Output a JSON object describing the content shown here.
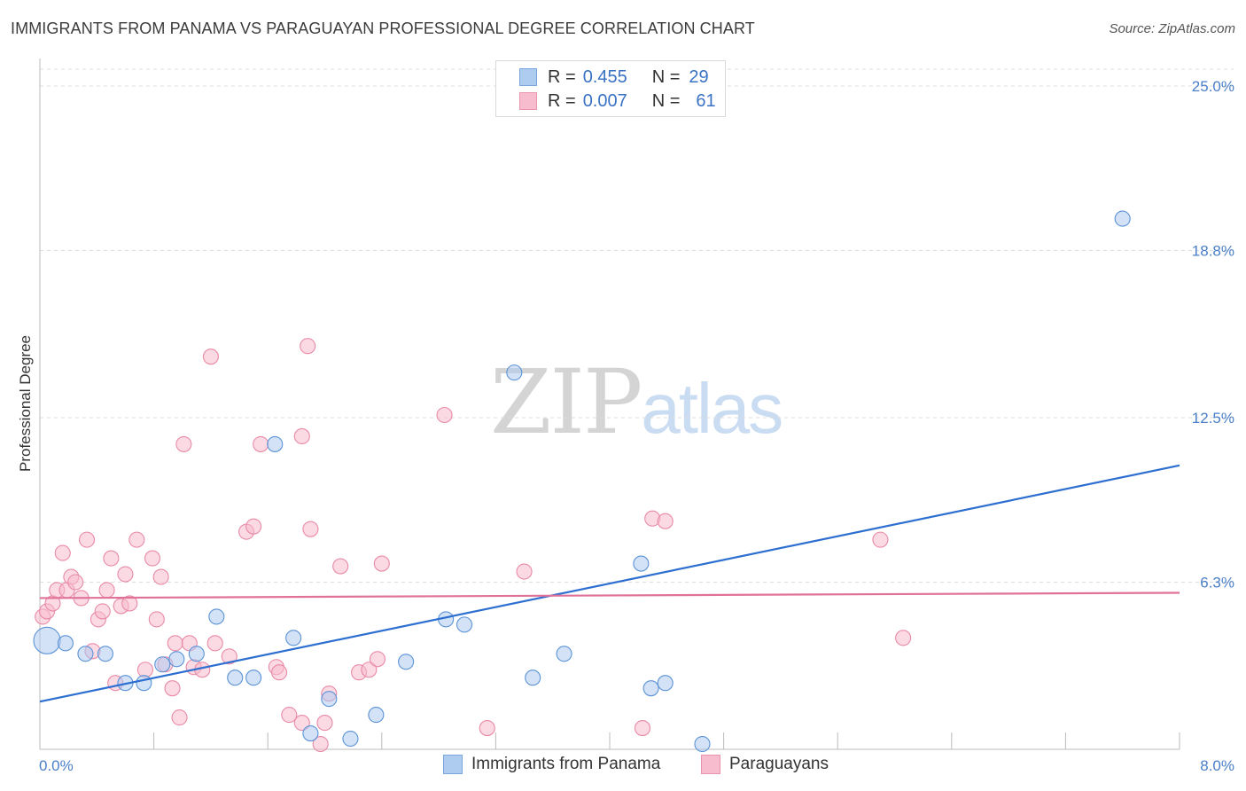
{
  "header": {
    "title": "IMMIGRANTS FROM PANAMA VS PARAGUAYAN PROFESSIONAL DEGREE CORRELATION CHART",
    "source": "Source: ZipAtlas.com"
  },
  "watermark": {
    "zip": "ZIP",
    "atlas": "atlas"
  },
  "legend": {
    "rows": [
      {
        "r_label": "R =",
        "r_value": "0.455",
        "n_label": "N =",
        "n_value": "29",
        "color": "#aecbf0"
      },
      {
        "r_label": "R =",
        "r_value": "0.007",
        "n_label": "N =",
        "n_value": "61",
        "color": "#f7bccd"
      }
    ]
  },
  "bottom_legend": {
    "items": [
      {
        "label": "Immigrants from Panama",
        "color": "#aecbf0"
      },
      {
        "label": "Paraguayans",
        "color": "#f7bccd"
      }
    ]
  },
  "chart_data": {
    "type": "scatter",
    "title": "IMMIGRANTS FROM PANAMA VS PARAGUAYAN PROFESSIONAL DEGREE CORRELATION CHART",
    "xlabel": "",
    "ylabel": "Professional Degree",
    "xlim": [
      0,
      8.0
    ],
    "ylim": [
      0,
      25.0
    ],
    "x_tick_labels": [
      "0.0%",
      "8.0%"
    ],
    "y_tick_labels": [
      "6.3%",
      "12.5%",
      "18.8%",
      "25.0%"
    ],
    "y_ticks": [
      6.3,
      12.5,
      18.8,
      25.0
    ],
    "grid": true,
    "series": [
      {
        "name": "Immigrants from Panama",
        "color": "#5b93d6",
        "fill": "#aecbf0",
        "trend": {
          "x": [
            0,
            8.0
          ],
          "y": [
            1.8,
            10.7
          ],
          "color": "#2d6fd0"
        },
        "points": [
          {
            "x": 0.05,
            "y": 4.1,
            "size": "large"
          },
          {
            "x": 0.18,
            "y": 4.0
          },
          {
            "x": 0.32,
            "y": 3.6
          },
          {
            "x": 0.46,
            "y": 3.6
          },
          {
            "x": 0.6,
            "y": 2.5
          },
          {
            "x": 0.73,
            "y": 2.5
          },
          {
            "x": 0.86,
            "y": 3.2
          },
          {
            "x": 0.96,
            "y": 3.4
          },
          {
            "x": 1.1,
            "y": 3.6
          },
          {
            "x": 1.24,
            "y": 5.0
          },
          {
            "x": 1.37,
            "y": 2.7
          },
          {
            "x": 1.5,
            "y": 2.7
          },
          {
            "x": 1.65,
            "y": 11.5
          },
          {
            "x": 1.78,
            "y": 4.2
          },
          {
            "x": 1.9,
            "y": 0.6
          },
          {
            "x": 2.03,
            "y": 1.9
          },
          {
            "x": 2.18,
            "y": 0.4
          },
          {
            "x": 2.36,
            "y": 1.3
          },
          {
            "x": 2.57,
            "y": 3.3
          },
          {
            "x": 2.85,
            "y": 4.9
          },
          {
            "x": 2.98,
            "y": 4.7
          },
          {
            "x": 3.33,
            "y": 14.2
          },
          {
            "x": 3.46,
            "y": 2.7
          },
          {
            "x": 3.68,
            "y": 3.6
          },
          {
            "x": 4.22,
            "y": 7.0
          },
          {
            "x": 4.29,
            "y": 2.3
          },
          {
            "x": 4.39,
            "y": 2.5
          },
          {
            "x": 4.65,
            "y": 0.2
          },
          {
            "x": 7.6,
            "y": 20.0
          }
        ]
      },
      {
        "name": "Paraguayans",
        "color": "#e98aa6",
        "fill": "#f7bccd",
        "trend": {
          "x": [
            0,
            8.0
          ],
          "y": [
            5.7,
            5.9
          ],
          "color": "#e0729a"
        },
        "points": [
          {
            "x": 0.02,
            "y": 5.0
          },
          {
            "x": 0.05,
            "y": 5.2
          },
          {
            "x": 0.09,
            "y": 5.5
          },
          {
            "x": 0.12,
            "y": 6.0
          },
          {
            "x": 0.16,
            "y": 7.4
          },
          {
            "x": 0.19,
            "y": 6.0
          },
          {
            "x": 0.22,
            "y": 6.5
          },
          {
            "x": 0.25,
            "y": 6.3
          },
          {
            "x": 0.29,
            "y": 5.7
          },
          {
            "x": 0.33,
            "y": 7.9
          },
          {
            "x": 0.37,
            "y": 3.7
          },
          {
            "x": 0.41,
            "y": 4.9
          },
          {
            "x": 0.44,
            "y": 5.2
          },
          {
            "x": 0.47,
            "y": 6.0
          },
          {
            "x": 0.5,
            "y": 7.2
          },
          {
            "x": 0.53,
            "y": 2.5
          },
          {
            "x": 0.57,
            "y": 5.4
          },
          {
            "x": 0.6,
            "y": 6.6
          },
          {
            "x": 0.63,
            "y": 5.5
          },
          {
            "x": 0.68,
            "y": 7.9
          },
          {
            "x": 0.74,
            "y": 3.0
          },
          {
            "x": 0.79,
            "y": 7.2
          },
          {
            "x": 0.82,
            "y": 4.9
          },
          {
            "x": 0.85,
            "y": 6.5
          },
          {
            "x": 0.88,
            "y": 3.2
          },
          {
            "x": 0.93,
            "y": 2.3
          },
          {
            "x": 0.95,
            "y": 4.0
          },
          {
            "x": 0.98,
            "y": 1.2
          },
          {
            "x": 1.01,
            "y": 11.5
          },
          {
            "x": 1.05,
            "y": 4.0
          },
          {
            "x": 1.08,
            "y": 3.1
          },
          {
            "x": 1.2,
            "y": 14.8
          },
          {
            "x": 1.23,
            "y": 4.0
          },
          {
            "x": 1.33,
            "y": 3.5
          },
          {
            "x": 1.45,
            "y": 8.2
          },
          {
            "x": 1.5,
            "y": 8.4
          },
          {
            "x": 1.55,
            "y": 11.5
          },
          {
            "x": 1.66,
            "y": 3.1
          },
          {
            "x": 1.68,
            "y": 2.9
          },
          {
            "x": 1.75,
            "y": 1.3
          },
          {
            "x": 1.84,
            "y": 1.0
          },
          {
            "x": 1.84,
            "y": 11.8
          },
          {
            "x": 1.88,
            "y": 15.2
          },
          {
            "x": 1.9,
            "y": 8.3
          },
          {
            "x": 1.97,
            "y": 0.2
          },
          {
            "x": 2.0,
            "y": 1.0
          },
          {
            "x": 2.03,
            "y": 2.1
          },
          {
            "x": 2.11,
            "y": 6.9
          },
          {
            "x": 2.24,
            "y": 2.9
          },
          {
            "x": 2.31,
            "y": 3.0
          },
          {
            "x": 2.37,
            "y": 3.4
          },
          {
            "x": 2.4,
            "y": 7.0
          },
          {
            "x": 2.84,
            "y": 12.6
          },
          {
            "x": 3.14,
            "y": 0.8
          },
          {
            "x": 3.4,
            "y": 6.7
          },
          {
            "x": 4.23,
            "y": 0.8
          },
          {
            "x": 4.3,
            "y": 8.7
          },
          {
            "x": 4.39,
            "y": 8.6
          },
          {
            "x": 5.9,
            "y": 7.9
          },
          {
            "x": 6.06,
            "y": 4.2
          },
          {
            "x": 1.14,
            "y": 3.0
          }
        ]
      }
    ]
  }
}
